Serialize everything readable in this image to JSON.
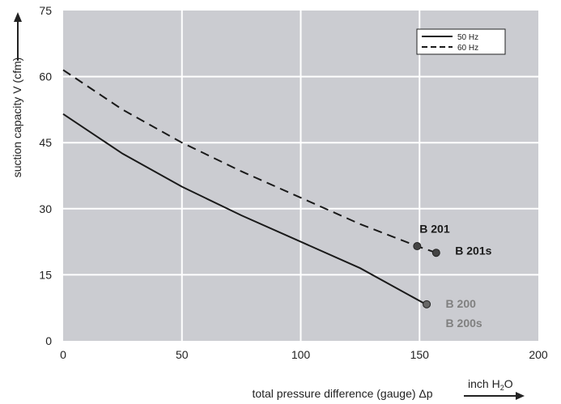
{
  "chart_data": {
    "type": "line",
    "xlabel": "total pressure difference (gauge)  Δp",
    "ylabel": "suction capacity V (cfm)",
    "x_unit": {
      "prefix": "inch H",
      "sub": "2",
      "suffix": "O"
    },
    "xlim": [
      0,
      200
    ],
    "ylim": [
      0,
      75
    ],
    "xticks": [
      "0",
      "50",
      "100",
      "150",
      "200"
    ],
    "yticks": [
      "0",
      "15",
      "30",
      "45",
      "60",
      "75"
    ],
    "grid": true,
    "legend_position": "top-right",
    "series": [
      {
        "name": "50 Hz",
        "style": "solid",
        "color": "#1a1a1a",
        "x": [
          0,
          25,
          50,
          75,
          100,
          125,
          152
        ],
        "y": [
          51.5,
          42.5,
          35,
          28.5,
          22.5,
          16.5,
          8.5
        ]
      },
      {
        "name": "60 Hz",
        "style": "dashed",
        "color": "#1a1a1a",
        "x": [
          0,
          25,
          50,
          75,
          100,
          125,
          149,
          157
        ],
        "y": [
          61.5,
          52.5,
          45,
          38.5,
          32.5,
          26.5,
          21.5,
          20
        ]
      }
    ],
    "points": [
      {
        "x": 149,
        "y": 21.5,
        "color": "#444444"
      },
      {
        "x": 157,
        "y": 20,
        "color": "#444444"
      },
      {
        "x": 153,
        "y": 8.3,
        "color": "#666666"
      }
    ],
    "annotations": [
      {
        "text": "B 201",
        "x": 150,
        "y": 25.5,
        "style": "dark"
      },
      {
        "text": "B 201s",
        "x": 165,
        "y": 20.5,
        "style": "dark"
      },
      {
        "text": "B 200",
        "x": 161,
        "y": 8.5,
        "style": "gray"
      },
      {
        "text": "B 200s",
        "x": 161,
        "y": 4,
        "style": "gray"
      }
    ],
    "colors": {
      "plot_background": "#cbccd1",
      "grid": "#ffffff"
    }
  }
}
